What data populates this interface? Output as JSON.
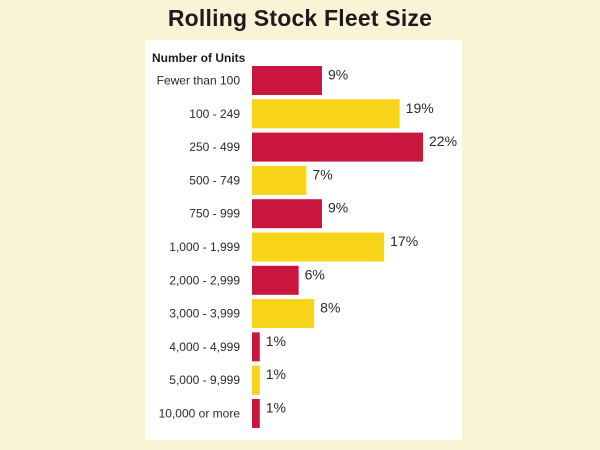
{
  "chart_data": {
    "type": "bar",
    "orientation": "horizontal",
    "title": "Rolling Stock Fleet Size",
    "ylabel": "Number of Units",
    "xlabel": "",
    "unit": "%",
    "categories": [
      "Fewer than 100",
      "100 - 249",
      "250 - 499",
      "500 - 749",
      "750 - 999",
      "1,000 - 1,999",
      "2,000 - 2,999",
      "3,000 - 3,999",
      "4,000 - 4,999",
      "5,000 - 9,999",
      "10,000 or more"
    ],
    "values": [
      9,
      19,
      22,
      7,
      9,
      17,
      6,
      8,
      1,
      1,
      1
    ],
    "value_labels": [
      "9%",
      "19%",
      "22%",
      "7%",
      "9%",
      "17%",
      "6%",
      "8%",
      "1%",
      "1%",
      "1%"
    ],
    "xlim": [
      0,
      22
    ],
    "grid": false,
    "legend": "none",
    "colors": {
      "bar_odd": "#c8163f",
      "bar_even": "#f7d418",
      "background": "#fbf3d6",
      "panel": "#ffffff"
    }
  }
}
